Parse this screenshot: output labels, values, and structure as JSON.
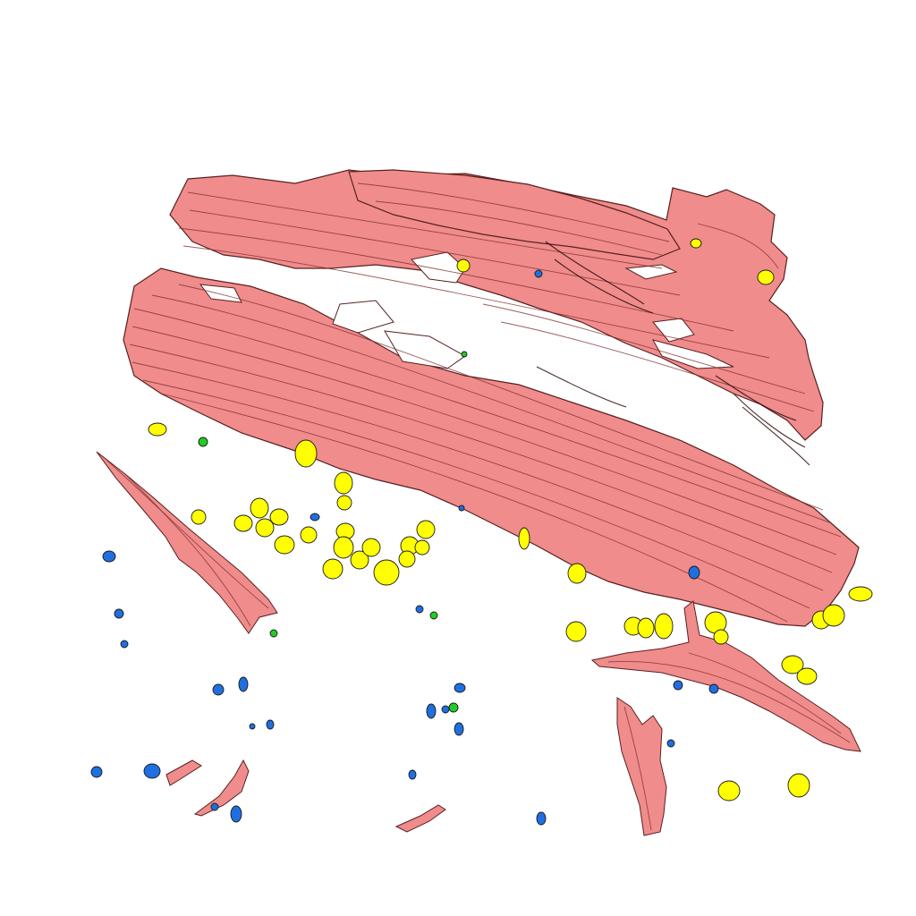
{
  "scene": {
    "colors": {
      "background": "#ffffff",
      "muscle_fiber": "#f08c8c",
      "fiber_outline": "#5a2020",
      "particle_yellow": "#ffff00",
      "particle_blue": "#1f6fe0",
      "particle_green": "#22cc22"
    }
  }
}
